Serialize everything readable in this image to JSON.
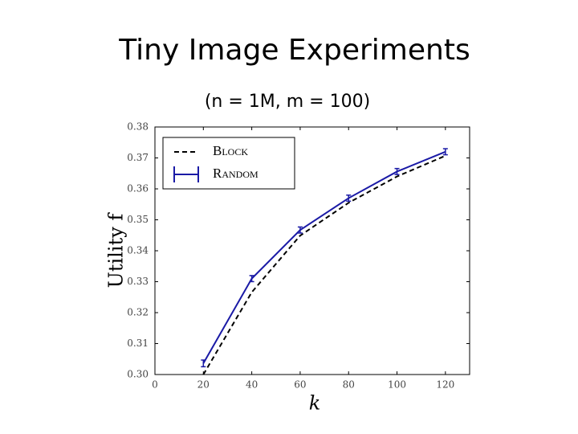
{
  "chart_data": {
    "type": "line",
    "title": "Tiny Image Experiments",
    "subtitle": "(n = 1M, m = 100)",
    "x_label": "k",
    "y_label": "Utility f",
    "x": [
      20,
      40,
      60,
      80,
      100,
      120
    ],
    "series": [
      {
        "name": "Block",
        "color": "#000000",
        "style": "dashed",
        "values": [
          0.3,
          0.3266,
          0.3449,
          0.3555,
          0.364,
          0.3707
        ]
      },
      {
        "name": "Random",
        "color": "#1a1aa6",
        "style": "solid",
        "values": [
          0.3036,
          0.331,
          0.3467,
          0.357,
          0.3656,
          0.372
        ],
        "errors": [
          0.0003,
          0.0002,
          0.0002,
          0.0002,
          0.0002,
          0.0002
        ]
      }
    ],
    "xlim": [
      0,
      130
    ],
    "xticks": [
      0,
      20,
      40,
      60,
      80,
      100,
      120
    ],
    "ylim": [
      0.3,
      0.38
    ],
    "yticks": [
      {
        "value": 0.3,
        "label": "0.30"
      },
      0.31,
      0.32,
      0.33,
      0.34,
      0.35,
      0.36,
      0.37,
      0.38
    ],
    "legend": "upper-left"
  }
}
